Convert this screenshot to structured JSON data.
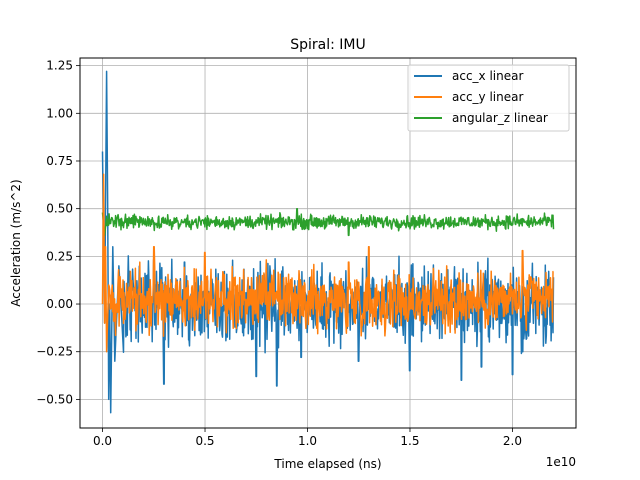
{
  "chart_data": {
    "type": "line",
    "title": "Spiral: IMU",
    "xlabel": "Time elapsed (ns)",
    "ylabel": "Acceleration (m/s^2)",
    "x_offset_label": "1e10",
    "xlim": [
      -0.11,
      2.31
    ],
    "ylim": [
      -0.65,
      1.29
    ],
    "x_ticks": [
      0.0,
      0.5,
      1.0,
      1.5,
      2.0
    ],
    "x_tick_labels": [
      "0.0",
      "0.5",
      "1.0",
      "1.5",
      "2.0"
    ],
    "y_ticks": [
      -0.5,
      -0.25,
      0.0,
      0.25,
      0.5,
      0.75,
      1.0,
      1.25
    ],
    "y_tick_labels": [
      "−0.50",
      "−0.25",
      "0.00",
      "0.25",
      "0.50",
      "0.75",
      "1.00",
      "1.25"
    ],
    "grid": true,
    "legend_position": "top-right",
    "x_range": [
      0.0,
      2.2
    ],
    "series": [
      {
        "name": "acc_x linear",
        "color": "#1f77b4",
        "spikes": [
          [
            0.0,
            0.8
          ],
          [
            0.01,
            -0.1
          ],
          [
            0.02,
            1.22
          ],
          [
            0.025,
            0.5
          ],
          [
            0.03,
            -0.5
          ],
          [
            0.035,
            0.0
          ],
          [
            0.04,
            -0.57
          ],
          [
            0.05,
            0.3
          ],
          [
            0.06,
            -0.3
          ],
          [
            0.08,
            0.2
          ],
          [
            0.1,
            -0.2
          ]
        ],
        "center": 0.0,
        "noise": 0.14,
        "extremes": [
          [
            0.3,
            -0.42
          ],
          [
            0.4,
            0.22
          ],
          [
            0.75,
            -0.38
          ],
          [
            0.85,
            -0.43
          ],
          [
            0.97,
            -0.28
          ],
          [
            1.25,
            -0.3
          ],
          [
            1.5,
            -0.35
          ],
          [
            1.75,
            -0.4
          ],
          [
            1.85,
            -0.33
          ],
          [
            2.0,
            -0.37
          ],
          [
            2.05,
            -0.25
          ],
          [
            2.2,
            0.14
          ]
        ]
      },
      {
        "name": "acc_y linear",
        "color": "#ff7f0e",
        "spikes": [
          [
            0.0,
            0.0
          ],
          [
            0.005,
            0.68
          ],
          [
            0.01,
            -0.1
          ],
          [
            0.015,
            0.3
          ],
          [
            0.02,
            -0.25
          ],
          [
            0.03,
            0.1
          ]
        ],
        "center": 0.02,
        "noise": 0.11,
        "extremes": [
          [
            0.25,
            0.3
          ],
          [
            0.5,
            0.27
          ],
          [
            1.2,
            0.22
          ],
          [
            1.3,
            0.3
          ],
          [
            2.05,
            0.28
          ],
          [
            2.2,
            0.17
          ]
        ]
      },
      {
        "name": "angular_z linear",
        "color": "#2ca02c",
        "spikes": [
          [
            0.0,
            0.48
          ],
          [
            0.01,
            0.36
          ],
          [
            0.02,
            0.46
          ]
        ],
        "center": 0.43,
        "noise": 0.025,
        "extremes": [
          [
            0.95,
            0.5
          ],
          [
            1.2,
            0.36
          ],
          [
            2.15,
            0.45
          ]
        ]
      }
    ]
  }
}
